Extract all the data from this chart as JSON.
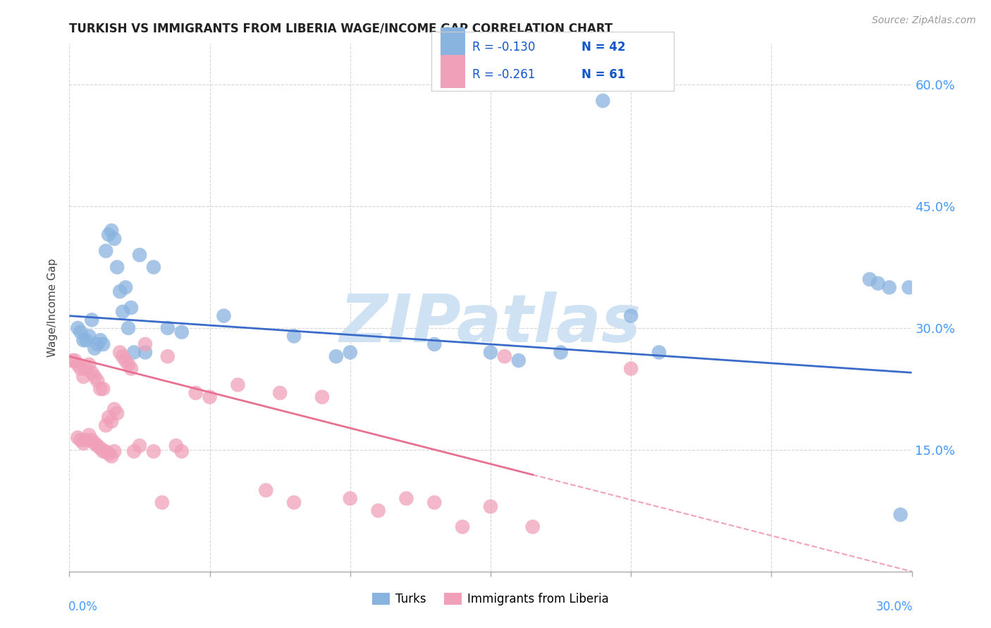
{
  "title": "TURKISH VS IMMIGRANTS FROM LIBERIA WAGE/INCOME GAP CORRELATION CHART",
  "source": "Source: ZipAtlas.com",
  "ylabel": "Wage/Income Gap",
  "turks_color": "#8ab4e0",
  "liberia_color": "#f0a0b8",
  "trend_turks_color": "#3a6bc9",
  "trend_liberia_color": "#e87090",
  "watermark": "ZIPatlas",
  "watermark_color": "#cfe2f3",
  "xlim": [
    0.0,
    0.3
  ],
  "ylim": [
    0.0,
    0.65
  ],
  "grid_color": "#cccccc",
  "right_tick_color": "#4499ff",
  "turks_x": [
    0.003,
    0.004,
    0.005,
    0.006,
    0.007,
    0.008,
    0.009,
    0.01,
    0.011,
    0.012,
    0.013,
    0.014,
    0.015,
    0.016,
    0.017,
    0.018,
    0.019,
    0.02,
    0.021,
    0.022,
    0.023,
    0.025,
    0.027,
    0.03,
    0.035,
    0.04,
    0.055,
    0.08,
    0.095,
    0.1,
    0.13,
    0.15,
    0.16,
    0.175,
    0.19,
    0.2,
    0.21,
    0.285,
    0.288,
    0.292,
    0.296,
    0.299
  ],
  "turks_y": [
    0.3,
    0.295,
    0.285,
    0.285,
    0.29,
    0.31,
    0.275,
    0.28,
    0.285,
    0.28,
    0.395,
    0.415,
    0.42,
    0.41,
    0.375,
    0.345,
    0.32,
    0.35,
    0.3,
    0.325,
    0.27,
    0.39,
    0.27,
    0.375,
    0.3,
    0.295,
    0.315,
    0.29,
    0.265,
    0.27,
    0.28,
    0.27,
    0.26,
    0.27,
    0.58,
    0.315,
    0.27,
    0.36,
    0.355,
    0.35,
    0.07,
    0.35
  ],
  "liberia_x": [
    0.001,
    0.002,
    0.003,
    0.003,
    0.004,
    0.004,
    0.005,
    0.005,
    0.006,
    0.006,
    0.007,
    0.007,
    0.008,
    0.008,
    0.009,
    0.009,
    0.01,
    0.01,
    0.011,
    0.011,
    0.012,
    0.012,
    0.013,
    0.013,
    0.014,
    0.014,
    0.015,
    0.015,
    0.016,
    0.016,
    0.017,
    0.018,
    0.019,
    0.02,
    0.021,
    0.022,
    0.023,
    0.025,
    0.027,
    0.03,
    0.033,
    0.035,
    0.038,
    0.04,
    0.045,
    0.05,
    0.06,
    0.07,
    0.075,
    0.08,
    0.09,
    0.1,
    0.11,
    0.12,
    0.13,
    0.14,
    0.15,
    0.155,
    0.165,
    0.2
  ],
  "liberia_y": [
    0.26,
    0.26,
    0.255,
    0.165,
    0.25,
    0.162,
    0.24,
    0.158,
    0.25,
    0.162,
    0.255,
    0.168,
    0.245,
    0.162,
    0.24,
    0.158,
    0.235,
    0.155,
    0.225,
    0.152,
    0.225,
    0.148,
    0.18,
    0.148,
    0.19,
    0.145,
    0.185,
    0.142,
    0.2,
    0.148,
    0.195,
    0.27,
    0.265,
    0.26,
    0.255,
    0.25,
    0.148,
    0.155,
    0.28,
    0.148,
    0.085,
    0.265,
    0.155,
    0.148,
    0.22,
    0.215,
    0.23,
    0.1,
    0.22,
    0.085,
    0.215,
    0.09,
    0.075,
    0.09,
    0.085,
    0.055,
    0.08,
    0.265,
    0.055,
    0.25
  ],
  "trend_turks_x0": 0.0,
  "trend_turks_y0": 0.315,
  "trend_turks_x1": 0.3,
  "trend_turks_y1": 0.245,
  "trend_liberia_x0": 0.0,
  "trend_liberia_y0": 0.265,
  "trend_liberia_solid_end": 0.165,
  "trend_liberia_x1": 0.3,
  "trend_liberia_y1": 0.0
}
